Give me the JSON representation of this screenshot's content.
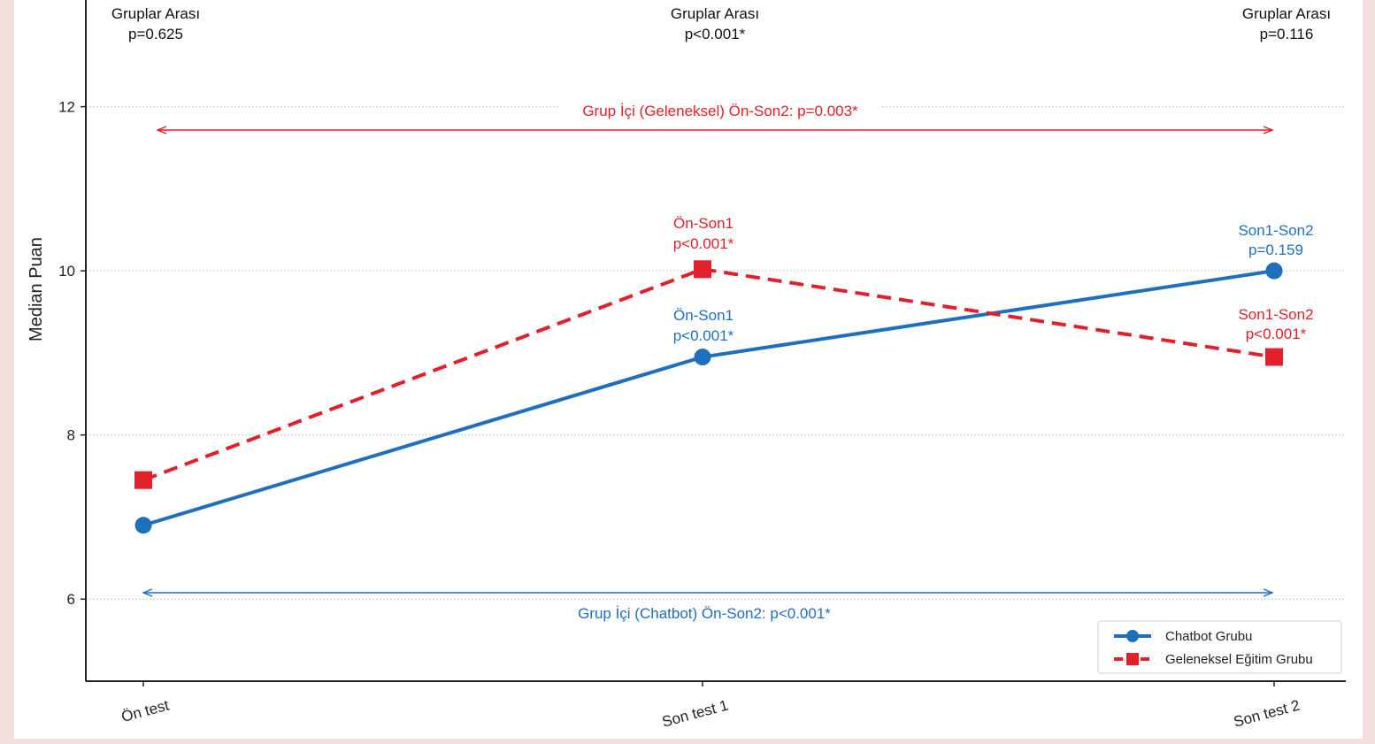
{
  "chart_data": {
    "type": "line",
    "title": "",
    "xlabel": "",
    "ylabel": "Median Puan",
    "categories": [
      "Ön test",
      "Son test 1",
      "Son test 2"
    ],
    "yticks": [
      6,
      8,
      10,
      12
    ],
    "ylim": [
      5.0,
      13.3
    ],
    "grid": "horizontal-dotted",
    "legend_placement": "bottom-right",
    "series": [
      {
        "name": "Chatbot Grubu",
        "values": [
          6.9,
          8.95,
          10.0
        ],
        "color": "#1f6fbf",
        "style": "solid",
        "marker": "circle"
      },
      {
        "name": "Geleneksel Eğitim Grubu",
        "values": [
          7.45,
          10.02,
          8.95
        ],
        "color": "#e0202a",
        "style": "dashed",
        "marker": "square"
      }
    ],
    "between_group_labels": [
      {
        "line1": "Gruplar Arası",
        "line2": "p=0.625"
      },
      {
        "line1": "Gruplar Arası",
        "line2": "p<0.001*"
      },
      {
        "line1": "Gruplar Arası",
        "line2": "p=0.116"
      }
    ],
    "point_annotations": [
      {
        "line1": "Ön-Son1",
        "line2": "p<0.001*",
        "color": "#e0202a"
      },
      {
        "line1": "Ön-Son1",
        "line2": "p<0.001*",
        "color": "#1f6fbf"
      },
      {
        "line1": "Son1-Son2",
        "line2": "p=0.159",
        "color": "#1f6fbf"
      },
      {
        "line1": "Son1-Son2",
        "line2": "p<0.001*",
        "color": "#e0202a"
      }
    ],
    "range_annotations": [
      {
        "text": "Grup İçi (Geleneksel) Ön-Son2: p=0.003*",
        "color": "#e0202a"
      },
      {
        "text": "Grup İçi (Chatbot) Ön-Son2: p<0.001*",
        "color": "#1f6fbf"
      }
    ]
  }
}
